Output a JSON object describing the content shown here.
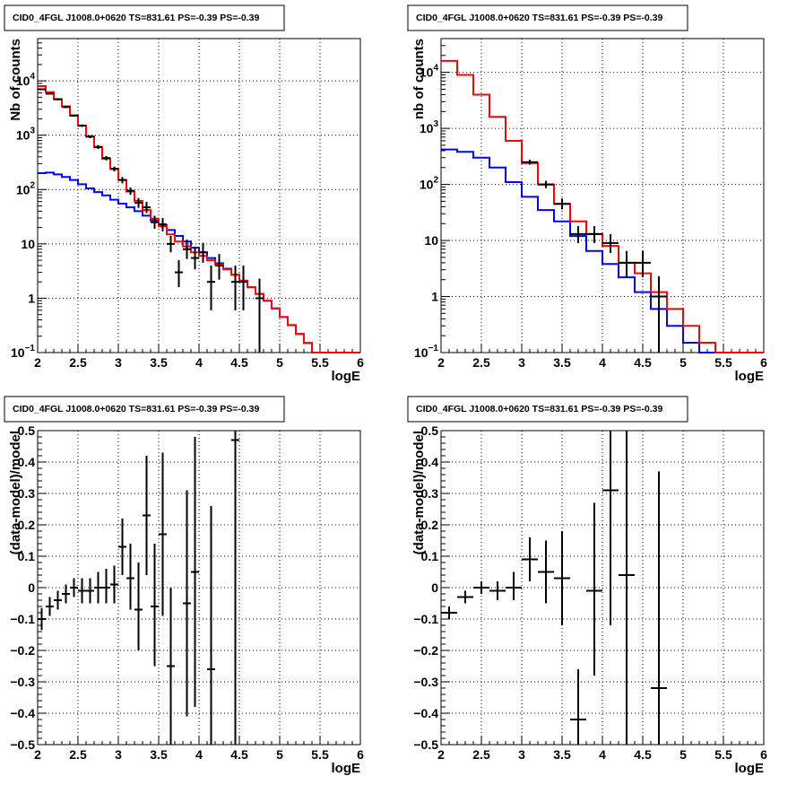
{
  "chart_data": [
    {
      "id": "p1",
      "type": "line",
      "title": "CID0_4FGL J1008.0+0620 TS=831.61 PS=-0.39 PS=-0.39",
      "xlabel": "logE",
      "ylabel": "Nb of counts",
      "xlim": [
        2,
        6
      ],
      "ylim": [
        0.1,
        60000
      ],
      "yscale": "log",
      "grid": true,
      "xticks": [
        "2",
        "2.5",
        "3",
        "3.5",
        "4",
        "4.5",
        "5",
        "5.5",
        "6"
      ],
      "yticks": [
        {
          "base": "10",
          "exp": "4",
          "v": 10000
        },
        {
          "base": "10",
          "exp": "3",
          "v": 1000
        },
        {
          "base": "10",
          "exp": "2",
          "v": 100
        },
        {
          "base": "10",
          "exp": "",
          "v": 10
        },
        {
          "base": "1",
          "exp": "",
          "v": 1
        },
        {
          "base": "10",
          "exp": "−1",
          "v": 0.1
        }
      ],
      "binning": {
        "start": 2.0,
        "width": 0.1
      },
      "series": [
        {
          "color": "#0000ff",
          "values": [
            200,
            205,
            190,
            170,
            150,
            125,
            105,
            90,
            78,
            65,
            55,
            47,
            40,
            33,
            27,
            22,
            18,
            14,
            11,
            8.5,
            7,
            5.5,
            4.4,
            3.5,
            2.7,
            2.1,
            1.6,
            1.2,
            0.9,
            0.65,
            0.45,
            0.32,
            0.22,
            0.15,
            0.1,
            0.1,
            0.1,
            0.1,
            0.1,
            0.1
          ]
        },
        {
          "color": "#ff0000",
          "values": [
            8000,
            6200,
            4600,
            3400,
            2300,
            1500,
            950,
            600,
            370,
            240,
            150,
            92,
            62,
            42,
            29,
            21,
            15,
            11,
            9,
            7,
            6,
            5,
            4.2,
            3.4,
            2.7,
            2.1,
            1.6,
            1.2,
            0.9,
            0.65,
            0.45,
            0.32,
            0.22,
            0.15,
            0.1,
            0.1,
            0.1,
            0.1,
            0.1,
            0.1
          ]
        },
        {
          "color": "#000000",
          "values": [
            7600,
            6000,
            4700,
            3300,
            2300,
            1500,
            940,
            610,
            380,
            230,
            155,
            88,
            60,
            45,
            28,
            23,
            14,
            10,
            8.5,
            7.4,
            6.5,
            4.5,
            4.0,
            3.5,
            2.8,
            2.0,
            1.6,
            1.2,
            0.9,
            0.65,
            0.45,
            0.32,
            0.22,
            0.15,
            0.1,
            0.1,
            0.1,
            0.1,
            0.1,
            0.1
          ]
        }
      ],
      "data_points": [
        {
          "x": 2.05,
          "y": 7000,
          "lo": 6800,
          "hi": 7200
        },
        {
          "x": 2.15,
          "y": 5800,
          "lo": 5600,
          "hi": 6000
        },
        {
          "x": 2.25,
          "y": 4600,
          "lo": 4400,
          "hi": 4800
        },
        {
          "x": 2.35,
          "y": 3300,
          "lo": 3150,
          "hi": 3450
        },
        {
          "x": 2.45,
          "y": 2300,
          "lo": 2200,
          "hi": 2400
        },
        {
          "x": 2.55,
          "y": 1500,
          "lo": 1420,
          "hi": 1580
        },
        {
          "x": 2.65,
          "y": 940,
          "lo": 880,
          "hi": 1000
        },
        {
          "x": 2.75,
          "y": 610,
          "lo": 560,
          "hi": 660
        },
        {
          "x": 2.85,
          "y": 380,
          "lo": 345,
          "hi": 415
        },
        {
          "x": 2.95,
          "y": 240,
          "lo": 215,
          "hi": 265
        },
        {
          "x": 3.05,
          "y": 150,
          "lo": 130,
          "hi": 170
        },
        {
          "x": 3.15,
          "y": 95,
          "lo": 80,
          "hi": 110
        },
        {
          "x": 3.25,
          "y": 57,
          "lo": 46,
          "hi": 70
        },
        {
          "x": 3.35,
          "y": 47,
          "lo": 37,
          "hi": 59
        },
        {
          "x": 3.45,
          "y": 25,
          "lo": 19,
          "hi": 33
        },
        {
          "x": 3.55,
          "y": 23,
          "lo": 17,
          "hi": 30
        },
        {
          "x": 3.65,
          "y": 10,
          "lo": 7,
          "hi": 14
        },
        {
          "x": 3.75,
          "y": 3,
          "lo": 1.6,
          "hi": 5
        },
        {
          "x": 3.85,
          "y": 8,
          "lo": 5.3,
          "hi": 12
        },
        {
          "x": 3.95,
          "y": 5.5,
          "lo": 3.4,
          "hi": 8.7
        },
        {
          "x": 4.05,
          "y": 7,
          "lo": 4.5,
          "hi": 10.5
        },
        {
          "x": 4.15,
          "y": 2,
          "lo": 0.6,
          "hi": 4
        },
        {
          "x": 4.25,
          "y": 4,
          "lo": 2.2,
          "hi": 6.5
        },
        {
          "x": 4.45,
          "y": 2,
          "lo": 0.6,
          "hi": 4
        },
        {
          "x": 4.55,
          "y": 2,
          "lo": 0.6,
          "hi": 4
        },
        {
          "x": 4.75,
          "y": 1,
          "lo": 0.1,
          "hi": 2.3
        }
      ]
    },
    {
      "id": "p2",
      "type": "line",
      "title": "CID0_4FGL J1008.0+0620 TS=831.61 PS=-0.39 PS=-0.39",
      "xlabel": "logE",
      "ylabel": "nb of counts",
      "xlim": [
        2,
        6
      ],
      "ylim": [
        0.1,
        40000
      ],
      "yscale": "log",
      "grid": true,
      "xticks": [
        "2",
        "2.5",
        "3",
        "3.5",
        "4",
        "4.5",
        "5",
        "5.5",
        "6"
      ],
      "yticks": [
        {
          "base": "10",
          "exp": "4",
          "v": 10000
        },
        {
          "base": "10",
          "exp": "3",
          "v": 1000
        },
        {
          "base": "10",
          "exp": "2",
          "v": 100
        },
        {
          "base": "10",
          "exp": "",
          "v": 10
        },
        {
          "base": "1",
          "exp": "",
          "v": 1
        },
        {
          "base": "10",
          "exp": "−1",
          "v": 0.1
        }
      ],
      "binning": {
        "start": 2.0,
        "width": 0.2
      },
      "series": [
        {
          "color": "#0000ff",
          "values": [
            420,
            380,
            300,
            200,
            110,
            60,
            35,
            22,
            12,
            6.5,
            3.8,
            2.2,
            1.2,
            0.6,
            0.3,
            0.15,
            0.1,
            0.1,
            0.1,
            0.1
          ]
        },
        {
          "color": "#ff0000",
          "values": [
            16000,
            9000,
            4000,
            1600,
            600,
            240,
            100,
            45,
            22,
            13,
            8,
            4,
            2.6,
            1.2,
            0.6,
            0.3,
            0.15,
            0.1,
            0.1,
            0.1
          ]
        },
        {
          "color": "#000000",
          "values": [
            15000,
            8500,
            3900,
            1600,
            600,
            240,
            100,
            45,
            22,
            13,
            8,
            4,
            2.6,
            1.2,
            0.6,
            0.3,
            0.15,
            0.1,
            0.1,
            0.1
          ]
        }
      ],
      "data_points": [
        {
          "x": 3.1,
          "y": 250,
          "lo": 225,
          "hi": 275
        },
        {
          "x": 3.3,
          "y": 100,
          "lo": 86,
          "hi": 116
        },
        {
          "x": 3.5,
          "y": 45,
          "lo": 36,
          "hi": 56
        },
        {
          "x": 3.7,
          "y": 13,
          "lo": 9,
          "hi": 18
        },
        {
          "x": 3.9,
          "y": 13,
          "lo": 9,
          "hi": 18
        },
        {
          "x": 4.1,
          "y": 9,
          "lo": 6,
          "hi": 13
        },
        {
          "x": 4.3,
          "y": 4,
          "lo": 2.2,
          "hi": 6.5
        },
        {
          "x": 4.5,
          "y": 4,
          "lo": 2.2,
          "hi": 6.5
        },
        {
          "x": 4.7,
          "y": 1,
          "lo": 0.1,
          "hi": 2.3
        }
      ]
    },
    {
      "id": "p3",
      "type": "scatter",
      "title": "CID0_4FGL J1008.0+0620 TS=831.61 PS=-0.39 PS=-0.39",
      "xlabel": "logE",
      "ylabel": "(data-model)/model",
      "xlim": [
        2,
        6
      ],
      "ylim": [
        -0.5,
        0.5
      ],
      "yscale": "linear",
      "grid": true,
      "xticks": [
        "2",
        "2.5",
        "3",
        "3.5",
        "4",
        "4.5",
        "5",
        "5.5",
        "6"
      ],
      "yticks": [
        {
          "base": "0.5",
          "exp": "",
          "v": 0.5
        },
        {
          "base": "0.4",
          "exp": "",
          "v": 0.4
        },
        {
          "base": "0.3",
          "exp": "",
          "v": 0.3
        },
        {
          "base": "0.2",
          "exp": "",
          "v": 0.2
        },
        {
          "base": "0.1",
          "exp": "",
          "v": 0.1
        },
        {
          "base": "0",
          "exp": "",
          "v": 0
        },
        {
          "base": "−0.1",
          "exp": "",
          "v": -0.1
        },
        {
          "base": "−0.2",
          "exp": "",
          "v": -0.2
        },
        {
          "base": "−0.3",
          "exp": "",
          "v": -0.3
        },
        {
          "base": "−0.4",
          "exp": "",
          "v": -0.4
        },
        {
          "base": "−0.5",
          "exp": "",
          "v": -0.5
        }
      ],
      "half_bin": 0.05,
      "data_points": [
        {
          "x": 2.05,
          "y": -0.1,
          "lo": -0.135,
          "hi": -0.065
        },
        {
          "x": 2.15,
          "y": -0.06,
          "lo": -0.09,
          "hi": -0.03
        },
        {
          "x": 2.25,
          "y": -0.04,
          "lo": -0.07,
          "hi": -0.01
        },
        {
          "x": 2.35,
          "y": -0.02,
          "lo": -0.05,
          "hi": 0.01
        },
        {
          "x": 2.45,
          "y": 0.0,
          "lo": -0.03,
          "hi": 0.03
        },
        {
          "x": 2.55,
          "y": -0.01,
          "lo": -0.05,
          "hi": 0.03
        },
        {
          "x": 2.65,
          "y": -0.01,
          "lo": -0.05,
          "hi": 0.03
        },
        {
          "x": 2.75,
          "y": 0.0,
          "lo": -0.05,
          "hi": 0.05
        },
        {
          "x": 2.85,
          "y": 0.0,
          "lo": -0.05,
          "hi": 0.06
        },
        {
          "x": 2.95,
          "y": 0.01,
          "lo": -0.05,
          "hi": 0.07
        },
        {
          "x": 3.05,
          "y": 0.13,
          "lo": 0.04,
          "hi": 0.22
        },
        {
          "x": 3.15,
          "y": 0.03,
          "lo": -0.07,
          "hi": 0.14
        },
        {
          "x": 3.25,
          "y": -0.07,
          "lo": -0.2,
          "hi": 0.08
        },
        {
          "x": 3.35,
          "y": 0.23,
          "lo": 0.04,
          "hi": 0.42
        },
        {
          "x": 3.45,
          "y": -0.06,
          "lo": -0.25,
          "hi": 0.14
        },
        {
          "x": 3.55,
          "y": 0.17,
          "lo": -0.09,
          "hi": 0.43
        },
        {
          "x": 3.65,
          "y": -0.25,
          "lo": -0.5,
          "hi": 0.0
        },
        {
          "x": 3.85,
          "y": -0.05,
          "lo": -0.41,
          "hi": 0.31
        },
        {
          "x": 3.95,
          "y": 0.05,
          "lo": -0.38,
          "hi": 0.48
        },
        {
          "x": 4.15,
          "y": -0.26,
          "lo": -0.5,
          "hi": 0.26
        },
        {
          "x": 4.45,
          "y": 0.47,
          "lo": -0.5,
          "hi": 0.5
        }
      ]
    },
    {
      "id": "p4",
      "type": "scatter",
      "title": "CID0_4FGL J1008.0+0620 TS=831.61 PS=-0.39 PS=-0.39",
      "xlabel": "logE",
      "ylabel": "(data-model)/model",
      "xlim": [
        2,
        6
      ],
      "ylim": [
        -0.5,
        0.5
      ],
      "yscale": "linear",
      "grid": true,
      "xticks": [
        "2",
        "2.5",
        "3",
        "3.5",
        "4",
        "4.5",
        "5",
        "5.5",
        "6"
      ],
      "yticks": [
        {
          "base": "0.5",
          "exp": "",
          "v": 0.5
        },
        {
          "base": "0.4",
          "exp": "",
          "v": 0.4
        },
        {
          "base": "0.3",
          "exp": "",
          "v": 0.3
        },
        {
          "base": "0.2",
          "exp": "",
          "v": 0.2
        },
        {
          "base": "0.1",
          "exp": "",
          "v": 0.1
        },
        {
          "base": "0",
          "exp": "",
          "v": 0
        },
        {
          "base": "−0.1",
          "exp": "",
          "v": -0.1
        },
        {
          "base": "−0.2",
          "exp": "",
          "v": -0.2
        },
        {
          "base": "−0.3",
          "exp": "",
          "v": -0.3
        },
        {
          "base": "−0.4",
          "exp": "",
          "v": -0.4
        },
        {
          "base": "−0.5",
          "exp": "",
          "v": -0.5
        }
      ],
      "half_bin": 0.1,
      "data_points": [
        {
          "x": 2.1,
          "y": -0.08,
          "lo": -0.1,
          "hi": -0.06
        },
        {
          "x": 2.3,
          "y": -0.03,
          "lo": -0.05,
          "hi": -0.01
        },
        {
          "x": 2.5,
          "y": 0.0,
          "lo": -0.02,
          "hi": 0.02
        },
        {
          "x": 2.7,
          "y": -0.01,
          "lo": -0.04,
          "hi": 0.02
        },
        {
          "x": 2.9,
          "y": 0.0,
          "lo": -0.04,
          "hi": 0.05
        },
        {
          "x": 3.1,
          "y": 0.09,
          "lo": 0.02,
          "hi": 0.16
        },
        {
          "x": 3.3,
          "y": 0.05,
          "lo": -0.05,
          "hi": 0.15
        },
        {
          "x": 3.5,
          "y": 0.03,
          "lo": -0.12,
          "hi": 0.18
        },
        {
          "x": 3.7,
          "y": -0.42,
          "lo": -0.5,
          "hi": -0.26
        },
        {
          "x": 3.9,
          "y": -0.01,
          "lo": -0.28,
          "hi": 0.27
        },
        {
          "x": 4.1,
          "y": 0.31,
          "lo": -0.12,
          "hi": 0.5
        },
        {
          "x": 4.3,
          "y": 0.04,
          "lo": -0.5,
          "hi": 0.5
        },
        {
          "x": 4.7,
          "y": -0.32,
          "lo": -0.5,
          "hi": 0.37
        }
      ]
    }
  ]
}
